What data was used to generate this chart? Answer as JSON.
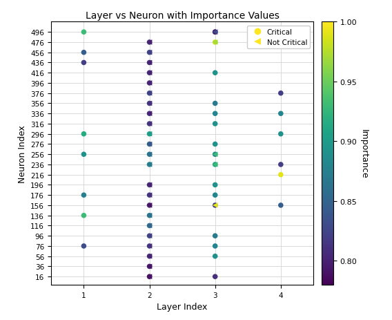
{
  "title": "Layer vs Neuron with Importance Values",
  "xlabel": "Layer Index",
  "ylabel": "Neuron Index",
  "cbar_label": "Importance",
  "cmap": "viridis",
  "vmin": 0.78,
  "vmax": 1.0,
  "cbar_ticks": [
    1.0,
    0.95,
    0.9,
    0.85,
    0.8
  ],
  "yticks": [
    16,
    36,
    56,
    76,
    96,
    116,
    136,
    156,
    176,
    196,
    216,
    236,
    256,
    276,
    296,
    316,
    336,
    356,
    376,
    396,
    416,
    436,
    456,
    476,
    496
  ],
  "xticks": [
    1,
    2,
    3,
    4
  ],
  "marker_size": 30,
  "legend_entries": [
    "Critical",
    "Not Critical"
  ],
  "layer1_critical": {
    "neurons": [
      496,
      456,
      436,
      296,
      256,
      176,
      136,
      76
    ],
    "importance": [
      0.93,
      0.845,
      0.82,
      0.915,
      0.89,
      0.875,
      0.93,
      0.83
    ]
  },
  "layer2_critical": {
    "neurons": [
      476,
      456,
      436,
      416,
      396,
      376,
      356,
      336,
      316,
      296,
      276,
      256,
      236,
      196,
      176,
      156,
      136,
      116,
      96,
      76,
      56,
      36,
      16
    ],
    "importance": [
      0.81,
      0.83,
      0.81,
      0.81,
      0.81,
      0.83,
      0.82,
      0.81,
      0.82,
      0.91,
      0.85,
      0.87,
      0.88,
      0.81,
      0.82,
      0.8,
      0.87,
      0.86,
      0.83,
      0.82,
      0.81,
      0.8,
      0.79
    ]
  },
  "layer2_not_critical": {
    "neurons": [
      476,
      456,
      436,
      416,
      396,
      376,
      356,
      336,
      316,
      296,
      276,
      256,
      236,
      196,
      176,
      156,
      136,
      116,
      96,
      76,
      56,
      36,
      16
    ],
    "importance": [
      0.8,
      0.82,
      0.8,
      0.8,
      0.8,
      0.82,
      0.81,
      0.8,
      0.81,
      0.9,
      0.84,
      0.86,
      0.87,
      0.8,
      0.81,
      0.79,
      0.86,
      0.85,
      0.82,
      0.81,
      0.8,
      0.79,
      0.79
    ]
  },
  "layer3_critical": {
    "neurons": [
      496,
      496,
      476,
      416,
      356,
      336,
      316,
      276,
      256,
      236,
      196,
      176,
      156,
      96,
      76,
      56,
      16
    ],
    "importance": [
      0.81,
      0.8,
      0.98,
      0.89,
      0.87,
      0.88,
      0.89,
      0.89,
      0.88,
      0.91,
      0.89,
      0.88,
      0.82,
      0.87,
      0.88,
      0.89,
      0.81
    ]
  },
  "layer3_not_critical": {
    "neurons": [
      496,
      476,
      256,
      236,
      156
    ],
    "importance": [
      0.83,
      0.97,
      0.93,
      0.93,
      0.99
    ]
  },
  "layer4_critical": {
    "neurons": [
      376,
      336,
      296,
      236,
      216,
      156
    ],
    "importance": [
      0.82,
      0.88,
      0.89,
      0.82,
      0.99,
      0.845
    ]
  }
}
